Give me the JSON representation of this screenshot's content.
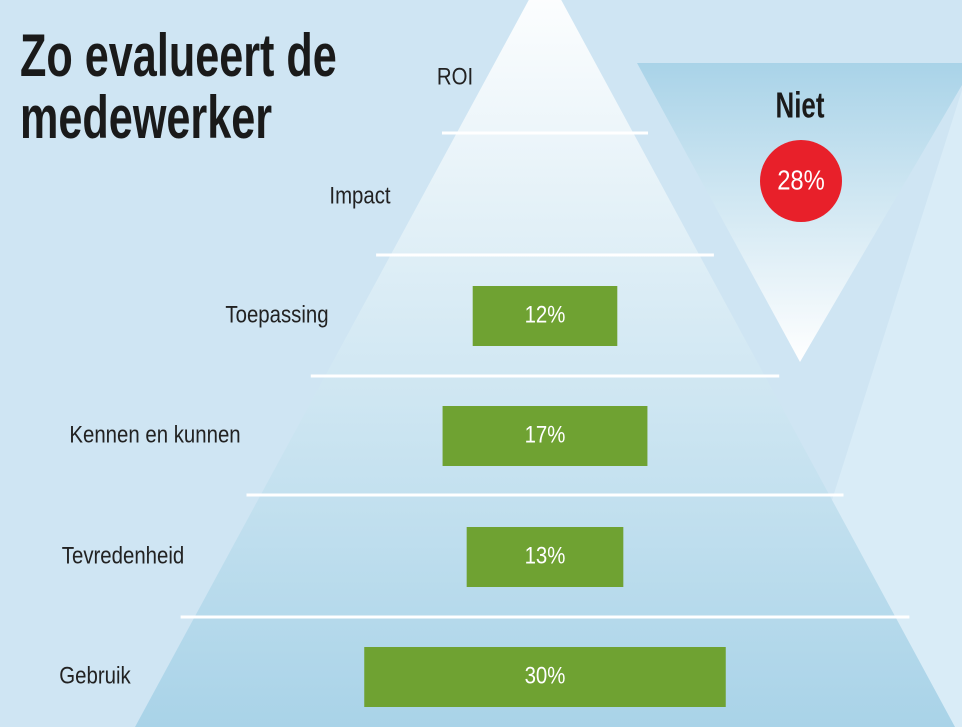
{
  "chart_data": {
    "type": "pyramid-bar",
    "title_lines": [
      "Zo evalueert de",
      "medewerker"
    ],
    "categories": [
      "ROI",
      "Impact",
      "Toepassing",
      "Kennen en kunnen",
      "Tevredenheid",
      "Gebruik"
    ],
    "values": [
      null,
      null,
      12,
      17,
      13,
      30
    ],
    "value_labels": [
      null,
      null,
      "12%",
      "17%",
      "13%",
      "30%"
    ],
    "color": "#6fa232",
    "annotation": {
      "text": "Niet",
      "value": 28,
      "value_label": "28%",
      "color": "#e8202a"
    }
  }
}
